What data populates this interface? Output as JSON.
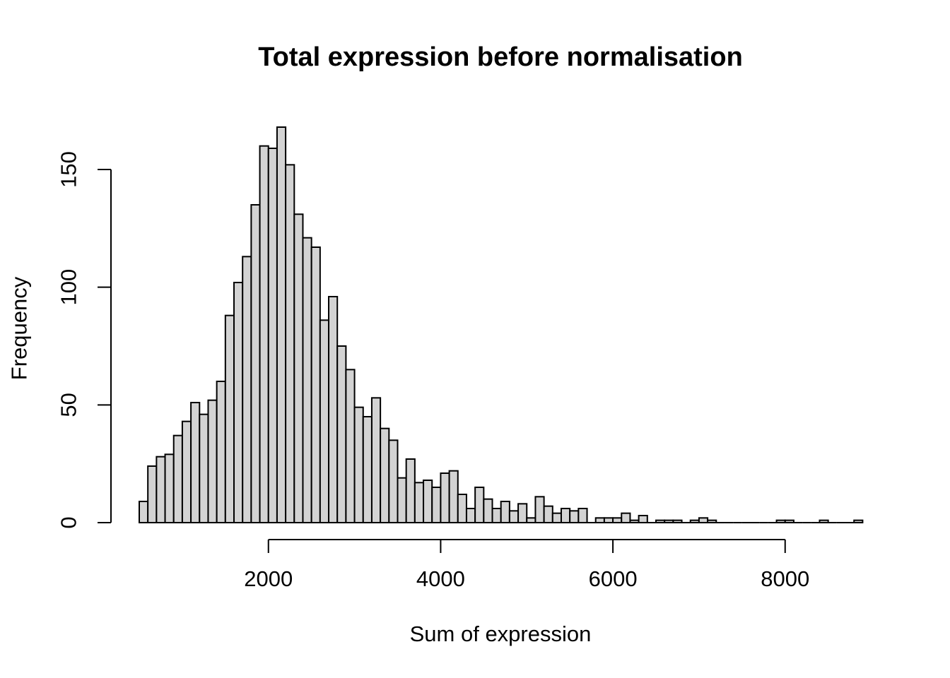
{
  "page": {
    "background": "#ffffff"
  },
  "chart_data": {
    "type": "bar",
    "subtype": "histogram",
    "title": "Total expression before normalisation",
    "xlabel": "Sum of expression",
    "ylabel": "Frequency",
    "bin_start": 500,
    "bin_width": 100,
    "counts": [
      9,
      24,
      28,
      29,
      37,
      43,
      51,
      46,
      52,
      60,
      88,
      102,
      113,
      135,
      160,
      159,
      168,
      152,
      131,
      121,
      117,
      86,
      96,
      75,
      65,
      49,
      45,
      53,
      40,
      35,
      19,
      27,
      17,
      18,
      15,
      21,
      22,
      12,
      6,
      15,
      10,
      6,
      9,
      5,
      8,
      2,
      11,
      7,
      4,
      6,
      5,
      6,
      0,
      2,
      2,
      2,
      4,
      1,
      3,
      0,
      1,
      1,
      1,
      0,
      1,
      2,
      1,
      0,
      0,
      0,
      0,
      0,
      0,
      0,
      1,
      1,
      0,
      0,
      0,
      1,
      0,
      0,
      0,
      1
    ],
    "x_ticks": [
      2000,
      4000,
      6000,
      8000
    ],
    "y_ticks": [
      0,
      50,
      100,
      150
    ],
    "xlim": [
      500,
      8900
    ],
    "ylim": [
      0,
      168
    ],
    "grid": false,
    "legend_position": "none",
    "bar_fill": "#d3d3d3",
    "bar_stroke": "#000000",
    "axis_color": "#000000"
  }
}
